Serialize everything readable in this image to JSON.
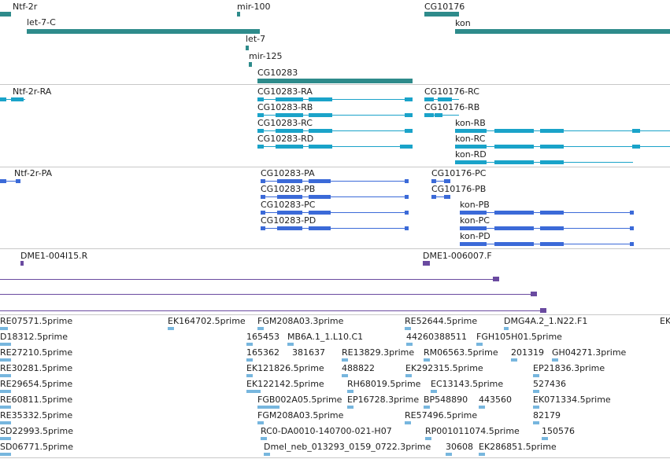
{
  "track_colors": {
    "gene": "#2e8b8b",
    "transcript": "#1aa3c9",
    "protein": "#3b6ad8",
    "probe": "#6a4aa0",
    "est": "#77b6de",
    "divider": "#c8c8c8"
  },
  "tracks": {
    "genes": {
      "labels": [
        "Ntf-2r",
        "mir-100",
        "CG10176",
        "let-7-C",
        "kon",
        "let-7",
        "mir-125",
        "CG10283"
      ]
    },
    "transcripts": {
      "labels": [
        "Ntf-2r-RA",
        "CG10283-RA",
        "CG10176-RC",
        "CG10283-RB",
        "CG10176-RB",
        "CG10283-RC",
        "kon-RB",
        "CG10283-RD",
        "kon-RC",
        "kon-RD"
      ]
    },
    "proteins": {
      "labels": [
        "Ntf-2r-PA",
        "CG10283-PA",
        "CG10176-PC",
        "CG10283-PB",
        "CG10176-PB",
        "CG10283-PC",
        "kon-PB",
        "CG10283-PD",
        "kon-PC",
        "kon-PD"
      ]
    },
    "probes": {
      "labels": [
        "DME1-004I15.R",
        "DME1-006007.F"
      ]
    },
    "ests": {
      "labels": [
        "RE07571.5prime",
        "EK164702.5prime",
        "FGM208A03.3prime",
        "RE52644.5prime",
        "DMG4A.2_1.N22.F1",
        "EK",
        "D18312.5prime",
        "165453",
        "MB6A.1_1.L10.C1",
        "44260388511",
        "FGH105H01.5prime",
        "RE27210.5prime",
        "165362",
        "381637",
        "RE13829.3prime",
        "RM06563.5prime",
        "201319",
        "GH04271.3prime",
        "RE30281.5prime",
        "EK121826.5prime",
        "488822",
        "EK292315.5prime",
        "EP21836.3prime",
        "RE29654.5prime",
        "EK122142.5prime",
        "RH68019.5prime",
        "EC13143.5prime",
        "527436",
        "RE60811.5prime",
        "FGB002A05.5prime",
        "EP16728.3prime",
        "BP548890",
        "443560",
        "EK071334.5prime",
        "RE35332.5prime",
        "FGM208A03.5prime",
        "RE57496.5prime",
        "82179",
        "SD22993.5prime",
        "RC0-DA0010-140700-021-H07",
        "RP001011074.5prime",
        "150576",
        "SD06771.5prime",
        "Dmel_neb_013293_0159_0722.3prime",
        "30608",
        "EK286851.5prime"
      ]
    }
  }
}
